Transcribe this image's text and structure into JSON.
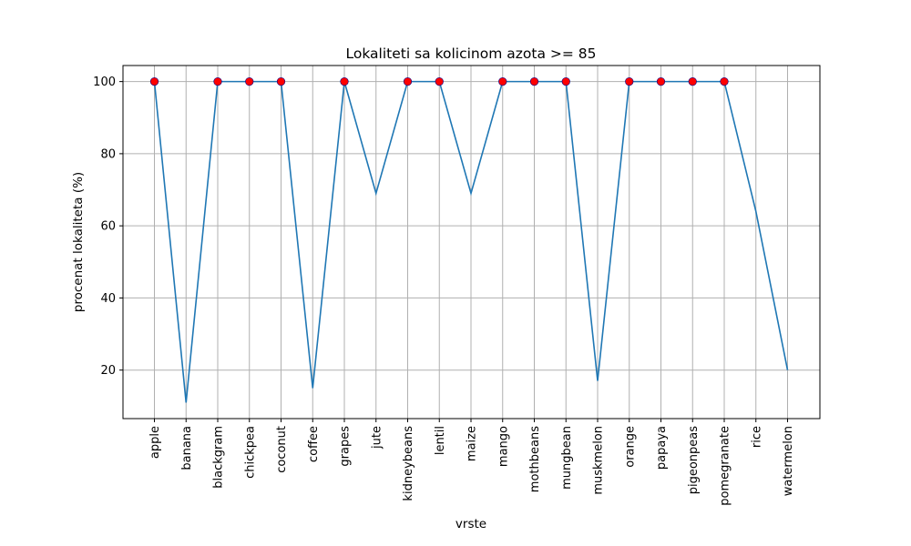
{
  "chart_data": {
    "type": "line",
    "title": "Lokaliteti sa kolicinom azota >= 85",
    "xlabel": "vrste",
    "ylabel": "procenat lokaliteta (%)",
    "categories": [
      "apple",
      "banana",
      "blackgram",
      "chickpea",
      "coconut",
      "coffee",
      "grapes",
      "jute",
      "kidneybeans",
      "lentil",
      "maize",
      "mango",
      "mothbeans",
      "mungbean",
      "muskmelon",
      "orange",
      "papaya",
      "pigeonpeas",
      "pomegranate",
      "rice",
      "watermelon"
    ],
    "series": [
      {
        "values": [
          100,
          11,
          100,
          100,
          100,
          15,
          100,
          69,
          100,
          100,
          69,
          100,
          100,
          100,
          17,
          100,
          100,
          100,
          100,
          64,
          20
        ],
        "color": "#1f77b4"
      }
    ],
    "highlight_points": {
      "description": "red markers at categories where value = 100",
      "color": "#ff0000",
      "edge_color": "#00008b"
    },
    "ylim": [
      6.55,
      104.45
    ],
    "yticks": [
      20,
      40,
      60,
      80,
      100
    ],
    "grid": true
  }
}
